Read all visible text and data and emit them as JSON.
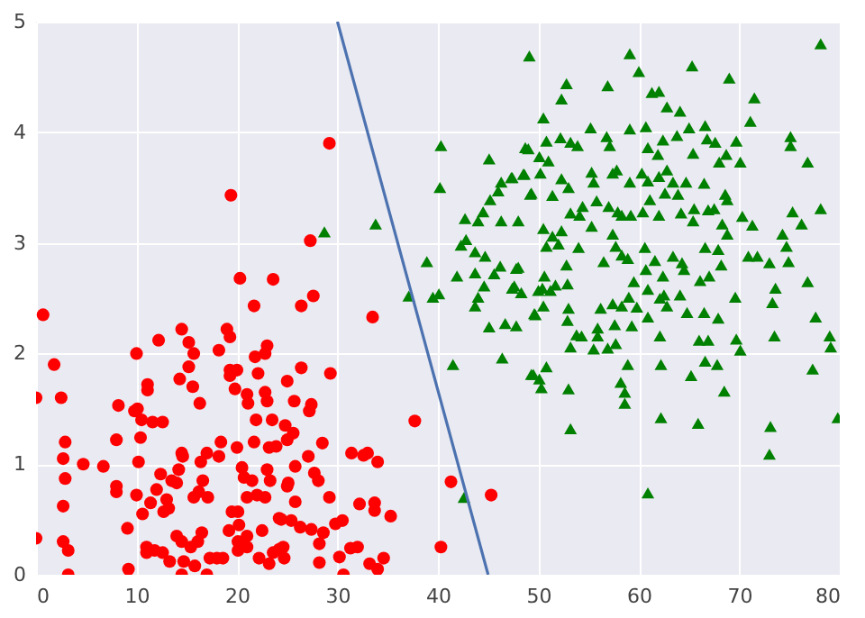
{
  "chart_data": {
    "type": "scatter",
    "xlim": [
      0,
      80
    ],
    "ylim": [
      0,
      5
    ],
    "xticks": [
      0,
      10,
      20,
      30,
      40,
      50,
      60,
      70,
      80
    ],
    "yticks": [
      0,
      1,
      2,
      3,
      4,
      5
    ],
    "grid": true,
    "series": [
      {
        "marker": "circle",
        "color": "#ff0000",
        "x": [
          0,
          0,
          0.7,
          1.8,
          2.5,
          2.9,
          2.7,
          2.9,
          2.7,
          2.7,
          3.2,
          3.2,
          4.7,
          6.7,
          8.2,
          8.0,
          8.0,
          8.0,
          9.1,
          9.2,
          9.8,
          10.1,
          10,
          10.2,
          10.0,
          10.5,
          10.4,
          10.6,
          11.1,
          11.1,
          11.4,
          11.6,
          12.6,
          12.2,
          12.0,
          12.4,
          11,
          11,
          11.8,
          12.6,
          13.3,
          13.2,
          12.7,
          13,
          13.5,
          14,
          14.2,
          14.5,
          14.6,
          14.3,
          14.5,
          15.2,
          15.2,
          15.7,
          15.6,
          16.3,
          15.7,
          16.2,
          16.6,
          16.4,
          17.0,
          17.1,
          14,
          14.5,
          14.7,
          15.4,
          16.1,
          16.5,
          15.8,
          17.3,
          18,
          18.6,
          14.5,
          17,
          18.2,
          18.4,
          19.2,
          19.5,
          18.2,
          19,
          19.3,
          19.3,
          19.3,
          19.8,
          20,
          19.4,
          20.3,
          20,
          20.1,
          20.2,
          20.1,
          20.1,
          20.5,
          20.7,
          21,
          21,
          21,
          21,
          21.1,
          21.7,
          21.8,
          21.9,
          21.7,
          22.1,
          21.5,
          22,
          22.5,
          22.2,
          22.8,
          23,
          23.6,
          22.8,
          23,
          23.5,
          23.2,
          23,
          23.3,
          22.8,
          23.2,
          23.6,
          24.4,
          24.6,
          24.8,
          25,
          25,
          25,
          24.7,
          29.2,
          27.3,
          27.6,
          26.4,
          33.5,
          26.4,
          29.3,
          37.7,
          27.4,
          27.2,
          25.7,
          28.5,
          25.6,
          23.9,
          27.1,
          31.4,
          32.6,
          33,
          34,
          25.8,
          27.7,
          28.1,
          29.2,
          25.8,
          25.1,
          32.2,
          33.7,
          33.7,
          35.3,
          41.3,
          45.3,
          40.3,
          30.5,
          29.8,
          28.6,
          27.4,
          26.3,
          25.4,
          24.2,
          28.2,
          31.3,
          32,
          30.2,
          28.2,
          33.2,
          34,
          34.6,
          30.6,
          24.2
        ],
        "values": [
          1.6,
          0.33,
          2.35,
          1.9,
          1.6,
          1.2,
          1.05,
          0.87,
          0.62,
          0.3,
          0.22,
          0,
          1.0,
          0.98,
          1.53,
          1.22,
          0.8,
          0.75,
          0.42,
          0.05,
          1.48,
          1.5,
          2.0,
          1.02,
          0.72,
          1.4,
          1.24,
          0.55,
          1.72,
          1.67,
          0.65,
          1.38,
          1.38,
          2.12,
          0.77,
          0.91,
          0.25,
          0.2,
          0.22,
          0.2,
          0.12,
          0.6,
          0.57,
          0.68,
          0.85,
          0.83,
          0.95,
          1.1,
          1.07,
          1.77,
          2.22,
          2.1,
          1.88,
          2.0,
          1.7,
          1.55,
          0.7,
          0.75,
          0.85,
          1.02,
          1.1,
          0.7,
          0.35,
          0.3,
          0.12,
          0.25,
          0.3,
          0.38,
          0.08,
          0.15,
          0.15,
          0.15,
          0,
          0,
          1.07,
          1.2,
          0.4,
          0.57,
          2.03,
          2.22,
          2.15,
          1.85,
          1.8,
          1.68,
          1.85,
          3.43,
          2.68,
          1.15,
          0.57,
          0.45,
          0.3,
          0.22,
          0.97,
          0.88,
          0.7,
          0.35,
          0.25,
          1.63,
          1.55,
          2.43,
          1.97,
          1.4,
          1.2,
          1.82,
          0.85,
          0.72,
          0.4,
          0.15,
          2.0,
          2.07,
          2.67,
          1.65,
          1.57,
          1.4,
          1.15,
          0.95,
          0.85,
          0.7,
          0.1,
          0.2,
          0.5,
          0.25,
          1.35,
          1.75,
          1.22,
          0.8,
          0.15,
          3.9,
          3.02,
          2.52,
          2.43,
          2.33,
          1.87,
          1.82,
          1.39,
          1.54,
          1.48,
          1.57,
          1.19,
          1.28,
          1.16,
          1.07,
          1.1,
          1.08,
          1.1,
          1.02,
          0.98,
          0.92,
          0.85,
          0.7,
          0.66,
          0.83,
          0.64,
          0.65,
          0.58,
          0.53,
          0.84,
          0.72,
          0.25,
          0.49,
          0.46,
          0.38,
          0.41,
          0.43,
          0.49,
          0.51,
          0.28,
          0.24,
          0.25,
          0.16,
          0.11,
          0.1,
          0.05,
          0.15,
          0,
          0.23
        ]
      },
      {
        "marker": "triangle",
        "color": "#008000",
        "x": [
          28.7,
          33.8,
          40.3,
          40.2,
          37.1,
          38.9,
          39.5,
          40.1,
          41.5,
          42.6,
          42.7,
          44,
          45.1,
          46.3,
          48,
          44.5,
          45.2,
          46,
          46.3,
          47.3,
          48.5,
          49.2,
          49,
          49.1,
          42.3,
          42.8,
          43.7,
          44.7,
          41.9,
          43.7,
          44.6,
          45.6,
          46.2,
          48,
          47.6,
          48.3,
          44,
          43.7,
          45.1,
          46.7,
          47.8,
          49.7,
          46.4,
          49.5,
          52.8,
          52.3,
          50.5,
          48.7,
          50.8,
          50.1,
          51,
          50.2,
          47.4,
          48.6,
          49.3,
          52.2,
          53.2,
          53.9,
          55.2,
          56.9,
          59.1,
          60,
          61.3,
          62,
          62.8,
          64.1,
          65.3,
          69,
          71.5,
          71.1,
          78.1,
          56.8,
          57.1,
          59.1,
          60.7,
          60.9,
          61.9,
          62.4,
          63.8,
          65,
          66.6,
          67.6,
          65.4,
          66.8,
          69.7,
          70.1,
          68,
          68.7,
          75.1,
          75.1,
          76.8,
          55.3,
          55.5,
          57.4,
          57.8,
          59.1,
          60.3,
          60.9,
          62,
          62.8,
          63.4,
          64.7,
          66.5,
          62.6,
          63.9,
          61.1,
          52.3,
          53,
          51.4,
          68.6,
          68.8,
          54.4,
          55.8,
          53.2,
          54.1,
          57,
          57.9,
          58.3,
          59.2,
          60.4,
          62,
          64.2,
          65.5,
          66.9,
          67.5,
          65.4,
          68.3,
          70.3,
          71.3,
          68.8,
          75.3,
          76.2,
          78.1,
          74.3,
          74.7,
          50.5,
          52.3,
          51.4,
          50.8,
          52,
          54,
          55.3,
          57.4,
          57.7,
          58.3,
          58.9,
          56.5,
          60.6,
          61.6,
          63.4,
          64.3,
          66.6,
          67.9,
          68.2,
          70.9,
          71.8,
          73,
          74.9,
          60.7,
          62.4,
          64.5,
          66.1,
          67,
          59.5,
          52.8,
          52.9,
          50.6,
          50.4,
          51.7,
          50,
          51.2,
          47.8,
          47.4,
          60.9,
          62.5,
          64.1,
          69.6,
          73.6,
          76.8,
          73.3,
          49.6,
          50.5,
          53,
          56.2,
          57.4,
          58.3,
          59,
          59.8,
          60.9,
          62.1,
          62.8,
          64.8,
          66.5,
          67.9,
          77.6,
          52.9,
          55.9,
          57.6,
          59.3,
          53.8,
          54.3,
          55.9,
          62.1,
          66,
          66.9,
          69.7,
          70.1,
          73.5,
          79,
          79.1,
          53.2,
          55.5,
          56.9,
          57.7,
          66.6,
          67.8,
          58.9,
          62.2,
          50.8,
          49.3,
          50.1,
          50.3,
          53,
          58.2,
          58.6,
          58.6,
          65.2,
          68.5,
          77.3,
          53.2,
          62.2,
          65.9,
          73.1,
          73,
          79.8,
          60.9
        ],
        "values": [
          3.1,
          3.17,
          3.88,
          3.5,
          2.52,
          2.83,
          2.51,
          2.54,
          1.9,
          0.7,
          3.22,
          3.2,
          3.76,
          3.2,
          3.2,
          3.28,
          3.39,
          3.47,
          3.55,
          3.59,
          3.62,
          3.44,
          3.85,
          4.69,
          2.98,
          3.03,
          2.92,
          2.88,
          2.7,
          2.73,
          2.61,
          2.72,
          2.79,
          2.78,
          2.61,
          2.55,
          2.51,
          2.43,
          2.24,
          2.27,
          2.25,
          2.35,
          1.96,
          1.81,
          4.44,
          4.3,
          4.13,
          3.86,
          3.92,
          3.78,
          3.74,
          3.63,
          3.59,
          3.62,
          3.45,
          3.95,
          3.91,
          3.88,
          4.04,
          4.42,
          4.71,
          4.55,
          4.36,
          4.37,
          4.23,
          4.19,
          4.6,
          4.49,
          4.31,
          4.1,
          4.8,
          3.96,
          3.88,
          4.03,
          4.05,
          3.86,
          3.8,
          3.93,
          3.97,
          4.04,
          4.06,
          3.91,
          3.81,
          3.94,
          3.92,
          3.73,
          3.73,
          3.8,
          3.96,
          3.88,
          3.73,
          3.64,
          3.55,
          3.63,
          3.66,
          3.55,
          3.63,
          3.56,
          3.6,
          3.66,
          3.55,
          3.55,
          3.54,
          3.45,
          3.44,
          3.39,
          3.58,
          3.5,
          3.43,
          3.44,
          3.39,
          3.33,
          3.38,
          3.27,
          3.25,
          3.33,
          3.28,
          3.25,
          3.25,
          3.28,
          3.25,
          3.27,
          3.31,
          3.3,
          3.31,
          3.2,
          3.17,
          3.24,
          3.16,
          3.08,
          3.28,
          3.17,
          3.31,
          3.08,
          2.97,
          3.13,
          3.11,
          3.06,
          2.97,
          2.99,
          2.96,
          3.15,
          3.08,
          2.97,
          2.89,
          2.86,
          2.83,
          2.96,
          2.84,
          2.88,
          2.82,
          2.96,
          2.94,
          2.8,
          2.88,
          2.88,
          2.82,
          2.83,
          2.76,
          2.7,
          2.76,
          2.66,
          2.7,
          2.65,
          2.8,
          2.63,
          2.7,
          2.59,
          2.62,
          2.57,
          2.57,
          2.77,
          2.59,
          2.58,
          2.53,
          2.53,
          2.51,
          2.59,
          2.65,
          2.46,
          2.36,
          2.43,
          2.41,
          2.41,
          2.45,
          2.43,
          2.51,
          2.42,
          2.33,
          2.5,
          2.43,
          2.37,
          2.37,
          2.32,
          2.33,
          2.3,
          2.23,
          2.26,
          2.25,
          2.17,
          2.16,
          2.16,
          2.16,
          2.12,
          2.12,
          2.13,
          2.03,
          2.16,
          2.16,
          2.06,
          2.06,
          2.04,
          2.05,
          2.09,
          1.93,
          1.9,
          1.9,
          1.9,
          1.88,
          1.81,
          1.77,
          1.69,
          1.68,
          1.74,
          1.65,
          1.55,
          1.8,
          1.66,
          1.86,
          1.32,
          1.42,
          1.37,
          1.34,
          1.09,
          1.42,
          0.74
        ]
      },
      {
        "type": "line",
        "color": "#4c72b0",
        "line_style": "solid",
        "x": [
          30,
          45
        ],
        "values": [
          5,
          0
        ]
      }
    ]
  }
}
